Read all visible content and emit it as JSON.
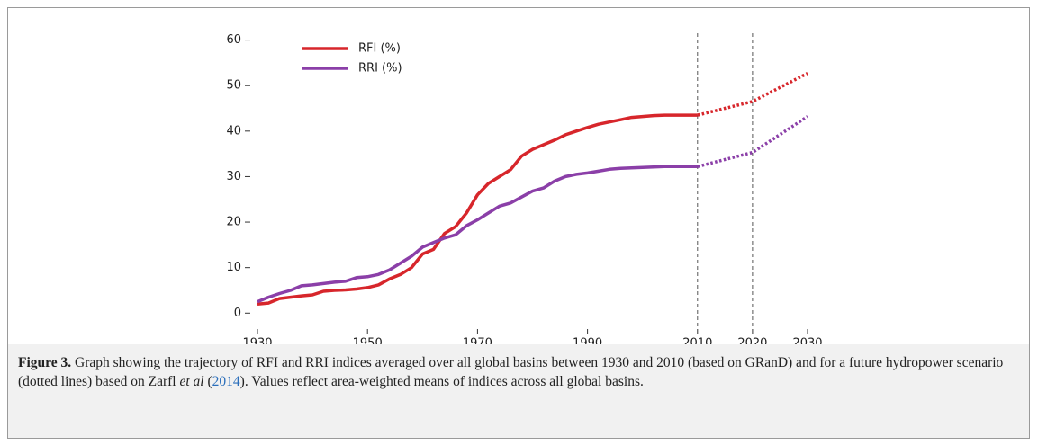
{
  "chart_data": {
    "type": "line",
    "x": [
      1930,
      1932,
      1934,
      1936,
      1938,
      1940,
      1942,
      1944,
      1946,
      1948,
      1950,
      1952,
      1954,
      1956,
      1958,
      1960,
      1962,
      1964,
      1966,
      1968,
      1970,
      1972,
      1974,
      1976,
      1978,
      1980,
      1982,
      1984,
      1986,
      1988,
      1990,
      1992,
      1994,
      1996,
      1998,
      2000,
      2002,
      2004,
      2006,
      2008,
      2010,
      2020,
      2030
    ],
    "series": [
      {
        "name": "RFI (%)",
        "color": "#d7262b",
        "style": "solid",
        "values": [
          2,
          2.2,
          3.2,
          3.5,
          3.8,
          4,
          4.8,
          5,
          5.1,
          5.3,
          5.6,
          6.2,
          7.5,
          8.5,
          10,
          13,
          14,
          17.5,
          19,
          22,
          26,
          28.5,
          30,
          31.5,
          34.5,
          36,
          37,
          38,
          39.2,
          40,
          40.8,
          41.5,
          42,
          42.5,
          43,
          43.2,
          43.4,
          43.5,
          43.5,
          43.5,
          43.5,
          null,
          null
        ]
      },
      {
        "name": "RRI (%)",
        "color": "#8b3fa8",
        "style": "solid",
        "values": [
          2.5,
          3.5,
          4.3,
          5,
          6,
          6.2,
          6.5,
          6.8,
          7,
          7.8,
          8,
          8.5,
          9.5,
          11,
          12.5,
          14.5,
          15.5,
          16.5,
          17.2,
          19.2,
          20.5,
          22,
          23.5,
          24.2,
          25.5,
          26.8,
          27.5,
          29,
          30,
          30.5,
          30.8,
          31.2,
          31.6,
          31.8,
          31.9,
          32,
          32.1,
          32.2,
          32.2,
          32.2,
          32.2,
          null,
          null
        ]
      },
      {
        "color": "#d7262b",
        "style": "dotted",
        "values": [
          null,
          null,
          null,
          null,
          null,
          null,
          null,
          null,
          null,
          null,
          null,
          null,
          null,
          null,
          null,
          null,
          null,
          null,
          null,
          null,
          null,
          null,
          null,
          null,
          null,
          null,
          null,
          null,
          null,
          null,
          null,
          null,
          null,
          null,
          null,
          null,
          null,
          null,
          null,
          null,
          43.5,
          46.5,
          52.7
        ]
      },
      {
        "color": "#8b3fa8",
        "style": "dotted",
        "values": [
          null,
          null,
          null,
          null,
          null,
          null,
          null,
          null,
          null,
          null,
          null,
          null,
          null,
          null,
          null,
          null,
          null,
          null,
          null,
          null,
          null,
          null,
          null,
          null,
          null,
          null,
          null,
          null,
          null,
          null,
          null,
          null,
          null,
          null,
          null,
          null,
          null,
          null,
          null,
          null,
          32.2,
          35.3,
          43.2
        ]
      }
    ],
    "xlim": [
      1930,
      2030
    ],
    "xticks": [
      1930,
      1950,
      1970,
      1990,
      2010,
      2020,
      2030
    ],
    "ylim": [
      -3.5,
      61.5
    ],
    "yticks": [
      0,
      10,
      20,
      30,
      40,
      50,
      60
    ],
    "vlines": [
      2010,
      2020
    ],
    "legend": "upper left",
    "grid": false
  },
  "caption": {
    "label": "Figure 3.",
    "parts": [
      "Graph showing the trajectory of RFI and RRI indices averaged over all global basins between 1930 and 2010 (based on GRanD) and for a future hydropower scenario (dotted lines) based on Zarfl ",
      "et al",
      "2014",
      ". Values reflect area-weighted means of indices across all global basins."
    ]
  }
}
